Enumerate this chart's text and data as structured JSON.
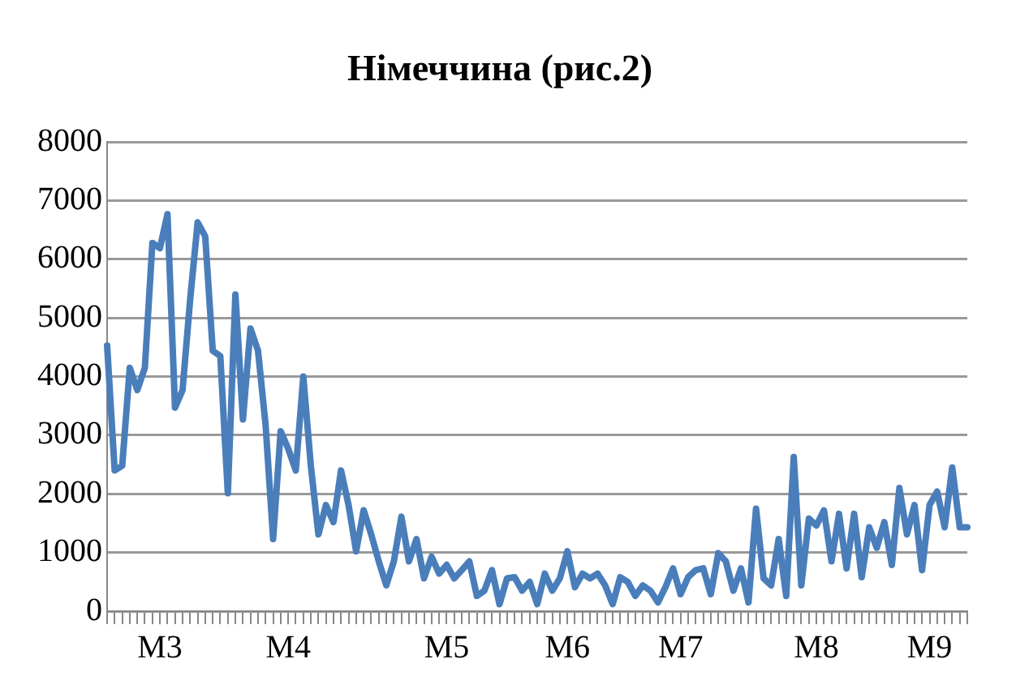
{
  "chart_data": {
    "type": "line",
    "title": "Німеччина (рис.2)",
    "categories": [
      null,
      null,
      null,
      null,
      null,
      null,
      null,
      "M3",
      null,
      null,
      null,
      null,
      null,
      null,
      null,
      null,
      null,
      null,
      null,
      null,
      null,
      null,
      null,
      null,
      "M4",
      null,
      null,
      null,
      null,
      null,
      null,
      null,
      null,
      null,
      null,
      null,
      null,
      null,
      null,
      null,
      null,
      null,
      null,
      null,
      null,
      "M5",
      null,
      null,
      null,
      null,
      null,
      null,
      null,
      null,
      null,
      null,
      null,
      null,
      null,
      null,
      null,
      "M6",
      null,
      null,
      null,
      null,
      null,
      null,
      null,
      null,
      null,
      null,
      null,
      null,
      null,
      null,
      "M7",
      null,
      null,
      null,
      null,
      null,
      null,
      null,
      null,
      null,
      null,
      null,
      null,
      null,
      null,
      null,
      null,
      null,
      "M8",
      null,
      null,
      null,
      null,
      null,
      null,
      null,
      null,
      null,
      null,
      null,
      null,
      null,
      null,
      "M9",
      null,
      null,
      null,
      null,
      null
    ],
    "series": [
      {
        "color": "#4a7ebb",
        "values": [
          4530,
          2400,
          2480,
          4150,
          3770,
          4150,
          6280,
          6190,
          6770,
          3470,
          3770,
          5310,
          6630,
          6390,
          4440,
          4350,
          2010,
          5400,
          3270,
          4820,
          4440,
          3180,
          1230,
          3070,
          2770,
          2400,
          4000,
          2480,
          1310,
          1810,
          1520,
          2400,
          1810,
          1020,
          1720,
          1310,
          850,
          440,
          850,
          1610,
          850,
          1230,
          560,
          930,
          640,
          790,
          560,
          700,
          850,
          260,
          350,
          700,
          120,
          560,
          580,
          350,
          500,
          120,
          640,
          350,
          560,
          1020,
          410,
          640,
          560,
          640,
          440,
          120,
          580,
          500,
          260,
          440,
          350,
          150,
          410,
          730,
          290,
          580,
          700,
          730,
          290,
          990,
          850,
          350,
          730,
          150,
          1750,
          560,
          440,
          1230,
          260,
          2630,
          440,
          1580,
          1460,
          1720,
          850,
          1660,
          730,
          1660,
          580,
          1430,
          1080,
          1520,
          790,
          2100,
          1310,
          1810,
          700,
          1810,
          2040,
          1430,
          2450,
          1430,
          1430
        ]
      }
    ],
    "ylim": [
      0,
      8000
    ],
    "yticks": [
      0,
      1000,
      2000,
      3000,
      4000,
      5000,
      6000,
      7000,
      8000
    ],
    "grid": "y",
    "legend": false,
    "marker": "none",
    "line_style": "solid"
  }
}
